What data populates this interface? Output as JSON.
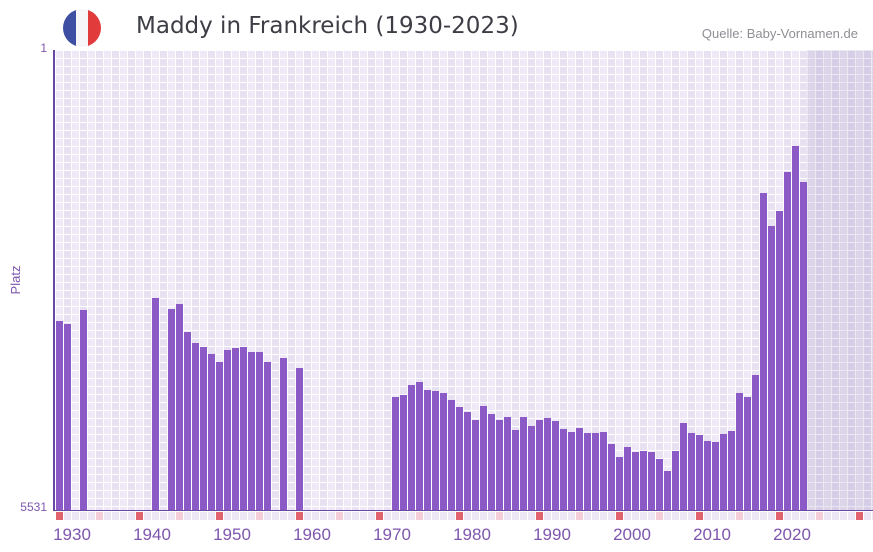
{
  "header": {
    "title": "Maddy in Frankreich (1930-2023)",
    "source": "Quelle: Baby-Vornamen.de"
  },
  "axes": {
    "y_label": "Platz",
    "y_top_tick": "1",
    "y_bottom_tick": "5531",
    "x_ticks": [
      "1930",
      "1940",
      "1950",
      "1960",
      "1970",
      "1980",
      "1990",
      "2000",
      "2010",
      "2020"
    ]
  },
  "chart_data": {
    "type": "bar",
    "title": "Maddy in Frankreich (1930-2023)",
    "xlabel": "",
    "ylabel": "Platz",
    "y_axis_inverted": true,
    "ylim": [
      1,
      5531
    ],
    "x_range_years": [
      1929,
      2030
    ],
    "last_data_year": 2022,
    "no_data_shaded_from": 2023,
    "grid": true,
    "points": [
      [
        1929,
        3259
      ],
      [
        1930,
        3295
      ],
      [
        1932,
        3127
      ],
      [
        1941,
        2982
      ],
      [
        1943,
        3115
      ],
      [
        1944,
        3055
      ],
      [
        1945,
        3391
      ],
      [
        1946,
        3523
      ],
      [
        1947,
        3571
      ],
      [
        1948,
        3656
      ],
      [
        1949,
        3752
      ],
      [
        1950,
        3608
      ],
      [
        1951,
        3584
      ],
      [
        1952,
        3571
      ],
      [
        1953,
        3632
      ],
      [
        1954,
        3632
      ],
      [
        1955,
        3752
      ],
      [
        1957,
        3704
      ],
      [
        1959,
        3824
      ],
      [
        1971,
        4173
      ],
      [
        1972,
        4149
      ],
      [
        1973,
        4028
      ],
      [
        1974,
        3992
      ],
      [
        1975,
        4088
      ],
      [
        1976,
        4100
      ],
      [
        1977,
        4124
      ],
      [
        1978,
        4209
      ],
      [
        1979,
        4293
      ],
      [
        1980,
        4353
      ],
      [
        1981,
        4449
      ],
      [
        1982,
        4281
      ],
      [
        1983,
        4377
      ],
      [
        1984,
        4449
      ],
      [
        1985,
        4413
      ],
      [
        1986,
        4569
      ],
      [
        1987,
        4413
      ],
      [
        1988,
        4521
      ],
      [
        1989,
        4449
      ],
      [
        1990,
        4425
      ],
      [
        1991,
        4461
      ],
      [
        1992,
        4557
      ],
      [
        1993,
        4593
      ],
      [
        1994,
        4545
      ],
      [
        1995,
        4605
      ],
      [
        1996,
        4605
      ],
      [
        1997,
        4593
      ],
      [
        1998,
        4738
      ],
      [
        1999,
        4894
      ],
      [
        2000,
        4774
      ],
      [
        2001,
        4834
      ],
      [
        2002,
        4822
      ],
      [
        2003,
        4834
      ],
      [
        2004,
        4918
      ],
      [
        2005,
        5062
      ],
      [
        2006,
        4822
      ],
      [
        2007,
        4485
      ],
      [
        2008,
        4605
      ],
      [
        2009,
        4629
      ],
      [
        2010,
        4702
      ],
      [
        2011,
        4714
      ],
      [
        2012,
        4617
      ],
      [
        2013,
        4581
      ],
      [
        2014,
        4124
      ],
      [
        2015,
        4173
      ],
      [
        2016,
        3908
      ],
      [
        2017,
        1720
      ],
      [
        2018,
        2117
      ],
      [
        2019,
        1937
      ],
      [
        2020,
        1468
      ],
      [
        2021,
        1155
      ],
      [
        2022,
        1588
      ]
    ]
  },
  "bottom_strip": {
    "red_mark_years": [
      1929,
      1939,
      1949,
      1959,
      1969,
      1979,
      1989,
      1999,
      2009,
      2019,
      2029
    ],
    "pink_mark_years": [
      1934,
      1944,
      1954,
      1964,
      1974,
      1984,
      1994,
      2004,
      2014,
      2024
    ]
  },
  "colors": {
    "bar": "#8b5ac6",
    "axis_line": "#6a46a5",
    "tick_text": "#7e56ae",
    "title_text": "#3d3d46",
    "source_text": "#8e8e96",
    "grid_cell_light": "#efe9f7",
    "grid_cell_dark": "#e7e1f2",
    "future_overlay": "rgba(126,110,170,0.16)",
    "strip_red": "#e0636e",
    "strip_pink": "#f4cdd9",
    "flag_blue": "#3d4ea3",
    "flag_white": "#f6f6f8",
    "flag_red": "#e23b3b"
  }
}
